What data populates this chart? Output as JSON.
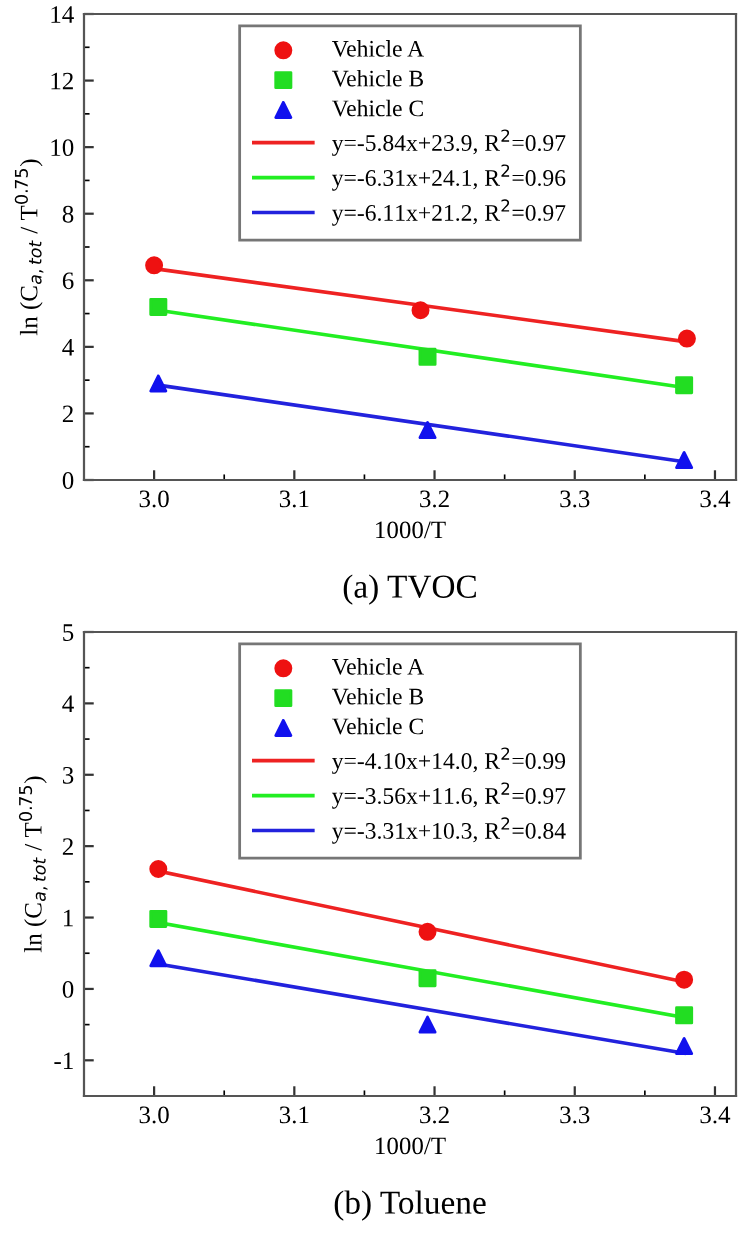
{
  "chart_data": [
    {
      "type": "scatter",
      "title": "(a) TVOC",
      "xlabel": "1000/T",
      "ylabel": "ln (C$_{a,tot}$ / T$^{0.75}$)",
      "xlim": [
        2.95,
        3.415
      ],
      "xticks": [
        {
          "value": 3,
          "label": "3.0"
        },
        3.1,
        3.2,
        3.3,
        3.4
      ],
      "ylim": [
        0,
        14
      ],
      "yticks": [
        0,
        2,
        4,
        6,
        8,
        10,
        12,
        14
      ],
      "legend": "top",
      "series": [
        {
          "name": "Vehicle A",
          "marker": "circle",
          "color": "#ee1111",
          "x": [
            3.0,
            3.19,
            3.38
          ],
          "values": [
            6.45,
            5.1,
            4.25
          ]
        },
        {
          "name": "Vehicle B",
          "marker": "square",
          "color": "#22dd22",
          "x": [
            3.003,
            3.195,
            3.378
          ],
          "values": [
            5.2,
            3.7,
            2.85
          ]
        },
        {
          "name": "Vehicle C",
          "marker": "triangle",
          "color": "#1111ee",
          "x": [
            3.003,
            3.195,
            3.378
          ],
          "values": [
            2.9,
            1.5,
            0.6
          ]
        },
        {
          "name": "y=-5.84x+23.9, R$^{2}$=0.97",
          "type": "line",
          "color": "#ee2222",
          "x": [
            3.0,
            3.38
          ],
          "values": [
            6.35,
            4.15
          ]
        },
        {
          "name": "y=-6.31x+24.1, R$^{2}$=0.96",
          "type": "line",
          "color": "#22ee22",
          "x": [
            3.003,
            3.378
          ],
          "values": [
            5.1,
            2.78
          ]
        },
        {
          "name": "y=-6.11x+21.2, R$^{2}$=0.97",
          "type": "line",
          "color": "#2222dd",
          "x": [
            3.003,
            3.378
          ],
          "values": [
            2.85,
            0.55
          ]
        }
      ]
    },
    {
      "type": "scatter",
      "title": "(b) Toluene",
      "xlabel": "1000/T",
      "ylabel": "ln (C$_{a,tot}$ / T$^{0.75}$)",
      "xlim": [
        2.95,
        3.415
      ],
      "xticks": [
        {
          "value": 3,
          "label": "3.0"
        },
        3.1,
        3.2,
        3.3,
        3.4
      ],
      "ylim": [
        -1.5,
        5
      ],
      "yticks": [
        -1,
        0,
        1,
        2,
        3,
        4,
        5
      ],
      "legend": "top",
      "series": [
        {
          "name": "Vehicle A",
          "marker": "circle",
          "color": "#ee1111",
          "x": [
            3.003,
            3.195,
            3.378
          ],
          "values": [
            1.68,
            0.8,
            0.13
          ]
        },
        {
          "name": "Vehicle B",
          "marker": "square",
          "color": "#22dd22",
          "x": [
            3.003,
            3.195,
            3.378
          ],
          "values": [
            0.98,
            0.15,
            -0.37
          ]
        },
        {
          "name": "Vehicle C",
          "marker": "triangle",
          "color": "#1111ee",
          "x": [
            3.003,
            3.195,
            3.378
          ],
          "values": [
            0.43,
            -0.5,
            -0.8
          ]
        },
        {
          "name": "y=-4.10x+14.0, R$^{2}$=0.99",
          "type": "line",
          "color": "#ee2222",
          "x": [
            3.003,
            3.378
          ],
          "values": [
            1.65,
            0.1
          ]
        },
        {
          "name": "y=-3.56x+11.6, R$^{2}$=0.97",
          "type": "line",
          "color": "#22ee22",
          "x": [
            3.003,
            3.378
          ],
          "values": [
            0.93,
            -0.4
          ]
        },
        {
          "name": "y=-3.31x+10.3, R$^{2}$=0.84",
          "type": "line",
          "color": "#2222dd",
          "x": [
            3.003,
            3.378
          ],
          "values": [
            0.35,
            -0.9
          ]
        }
      ]
    }
  ]
}
